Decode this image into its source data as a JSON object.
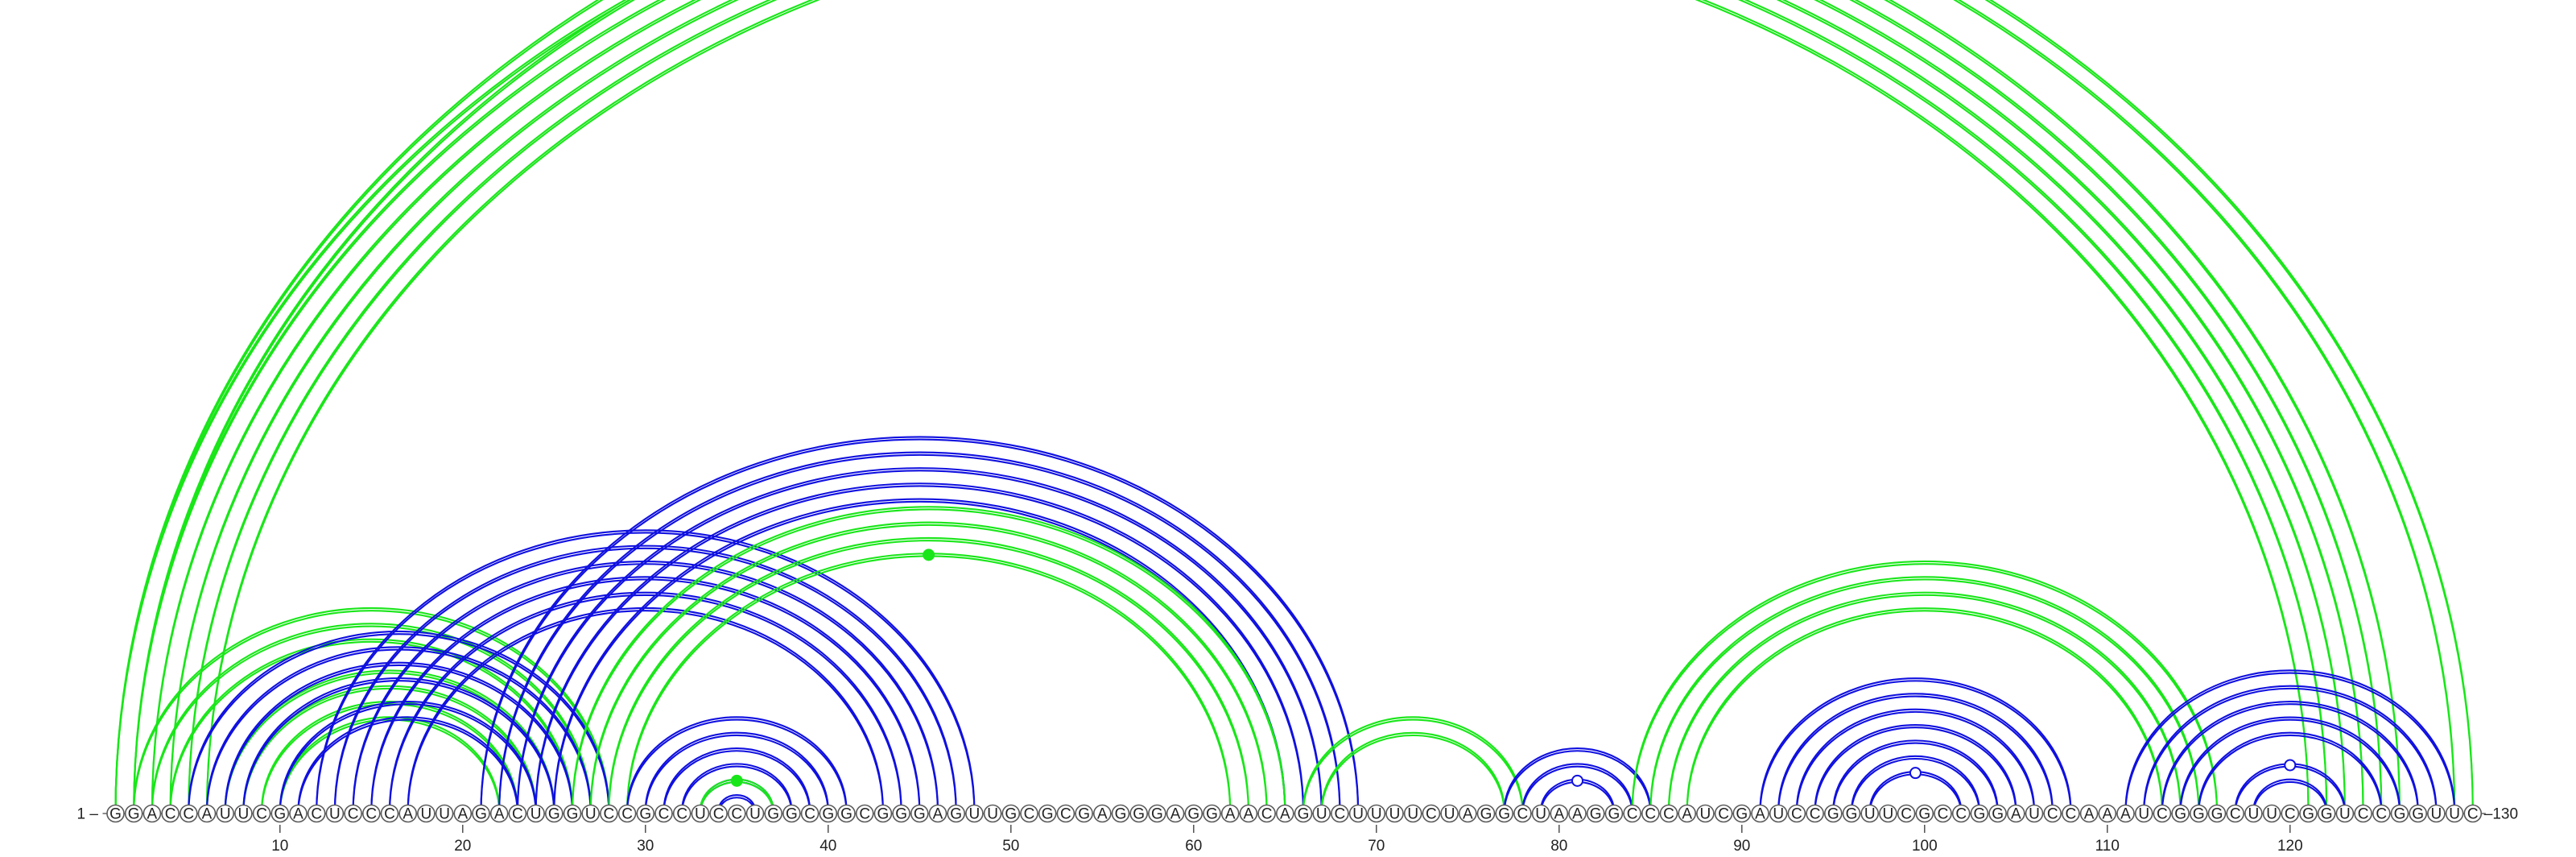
{
  "sequence": "GGACCAUUCGACUCCCAUUAGACUGGUCCGCCUCCUGGCGGCGGGAGUUGCGCGAGGGAGGAACAGUCUUUUCUAGGCUAAGGCCCAUCGAUCCGGUUCGCCGGAUCCAAAUCGGGCUUCGGUCCGGUUC",
  "start_label": "1 –",
  "end_label": "–130",
  "ticks": [
    "10",
    "20",
    "30",
    "40",
    "50",
    "60",
    "70",
    "80",
    "90",
    "100",
    "110",
    "120"
  ],
  "tick_positions": [
    10,
    20,
    30,
    40,
    50,
    60,
    70,
    80,
    90,
    100,
    110,
    120
  ],
  "colors": {
    "green": "#19e619",
    "blue": "#1010e0"
  },
  "helices": [
    {
      "color": "green",
      "pairs": [
        [
          1,
          126
        ],
        [
          2,
          125
        ],
        [
          3,
          124
        ],
        [
          4,
          123
        ],
        [
          5,
          122
        ],
        [
          6,
          121
        ]
      ],
      "marker": {
        "pair": [
          6,
          121
        ],
        "type": "open-circle"
      }
    },
    {
      "color": "green",
      "pairs": [
        [
          1,
          130
        ],
        [
          2,
          129
        ]
      ],
      "marker": null
    },
    {
      "color": "green",
      "pairs": [
        [
          2,
          28
        ],
        [
          3,
          27
        ],
        [
          4,
          26
        ],
        [
          7,
          25
        ],
        [
          8,
          24
        ],
        [
          9,
          23
        ],
        [
          10,
          22
        ]
      ],
      "marker": null
    },
    {
      "color": "blue",
      "pairs": [
        [
          5,
          28
        ],
        [
          6,
          27
        ],
        [
          7,
          26
        ],
        [
          8,
          25
        ],
        [
          10,
          24
        ],
        [
          11,
          23
        ]
      ],
      "marker": null
    },
    {
      "color": "blue",
      "pairs": [
        [
          12,
          48
        ],
        [
          13,
          47
        ],
        [
          14,
          46
        ],
        [
          15,
          45
        ],
        [
          16,
          44
        ],
        [
          17,
          43
        ]
      ],
      "marker": null
    },
    {
      "color": "blue",
      "pairs": [
        [
          21,
          69
        ],
        [
          22,
          68
        ],
        [
          23,
          67
        ],
        [
          24,
          66
        ],
        [
          25,
          65
        ]
      ],
      "marker": null
    },
    {
      "color": "green",
      "pairs": [
        [
          26,
          65
        ],
        [
          27,
          64
        ],
        [
          28,
          63
        ],
        [
          29,
          62
        ]
      ],
      "marker": {
        "pair": [
          29,
          62
        ],
        "type": "filled-circle"
      }
    },
    {
      "color": "blue",
      "pairs": [
        [
          29,
          41
        ],
        [
          30,
          40
        ],
        [
          31,
          39
        ],
        [
          32,
          38
        ],
        [
          33,
          37
        ],
        [
          34,
          36
        ]
      ],
      "marker": null
    },
    {
      "color": "green",
      "pairs": [
        [
          33,
          37
        ]
      ],
      "marker": {
        "pair": [
          33,
          37
        ],
        "type": "filled-circle"
      }
    },
    {
      "color": "green",
      "pairs": [
        [
          66,
          78
        ],
        [
          67,
          77
        ]
      ],
      "marker": null
    },
    {
      "color": "blue",
      "pairs": [
        [
          77,
          85
        ],
        [
          78,
          84
        ],
        [
          79,
          83
        ]
      ],
      "marker": {
        "pair": [
          79,
          83
        ],
        "type": "open-circle"
      }
    },
    {
      "color": "green",
      "pairs": [
        [
          84,
          116
        ],
        [
          85,
          115
        ],
        [
          86,
          114
        ],
        [
          87,
          113
        ]
      ],
      "marker": null
    },
    {
      "color": "blue",
      "pairs": [
        [
          91,
          108
        ],
        [
          92,
          107
        ],
        [
          93,
          106
        ],
        [
          94,
          105
        ],
        [
          95,
          104
        ],
        [
          96,
          103
        ],
        [
          97,
          102
        ]
      ],
      "marker": {
        "pair": [
          97,
          102
        ],
        "type": "open-circle"
      }
    },
    {
      "color": "blue",
      "pairs": [
        [
          111,
          129
        ],
        [
          112,
          128
        ],
        [
          113,
          127
        ],
        [
          114,
          126
        ],
        [
          115,
          125
        ],
        [
          117,
          123
        ],
        [
          118,
          122
        ]
      ],
      "marker": {
        "pair": [
          117,
          123
        ],
        "type": "open-circle"
      }
    }
  ]
}
